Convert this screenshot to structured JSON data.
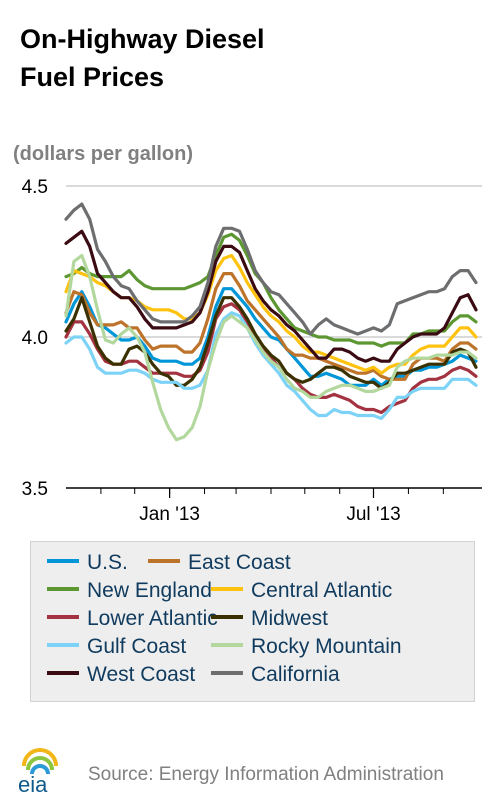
{
  "title_lines": [
    "On-Highway Diesel",
    "Fuel Prices"
  ],
  "unit_label": "(dollars per gallon)",
  "source": "Source: Energy Information Administration",
  "logo_text": "eia",
  "chart_data": {
    "type": "line",
    "title": "On-Highway Diesel Fuel Prices",
    "ylabel": "(dollars per gallon)",
    "ylim": [
      3.5,
      4.5
    ],
    "yticks": [
      "4.5",
      "4.0",
      "3.5"
    ],
    "xticks": [
      "Jan '13",
      "Jul '13"
    ],
    "grid": "horizontal",
    "legend_position": "bottom",
    "x": [
      "2012-10-01",
      "2012-10-08",
      "2012-10-15",
      "2012-10-22",
      "2012-10-29",
      "2012-11-05",
      "2012-11-12",
      "2012-11-19",
      "2012-11-26",
      "2012-12-03",
      "2012-12-10",
      "2012-12-17",
      "2012-12-24",
      "2012-12-31",
      "2013-01-07",
      "2013-01-14",
      "2013-01-21",
      "2013-01-28",
      "2013-02-04",
      "2013-02-11",
      "2013-02-18",
      "2013-02-25",
      "2013-03-04",
      "2013-03-11",
      "2013-03-18",
      "2013-03-25",
      "2013-04-01",
      "2013-04-08",
      "2013-04-15",
      "2013-04-22",
      "2013-04-29",
      "2013-05-06",
      "2013-05-13",
      "2013-05-20",
      "2013-05-27",
      "2013-06-03",
      "2013-06-10",
      "2013-06-17",
      "2013-06-24",
      "2013-07-01",
      "2013-07-08",
      "2013-07-15",
      "2013-07-22",
      "2013-07-29",
      "2013-08-05",
      "2013-08-12",
      "2013-08-19",
      "2013-08-26",
      "2013-09-02",
      "2013-09-09",
      "2013-09-16",
      "2013-09-23",
      "2013-09-30"
    ],
    "series": [
      {
        "name": "U.S.",
        "color": "#0096d7",
        "values": [
          4.05,
          4.11,
          4.15,
          4.1,
          4.04,
          4.03,
          4.01,
          3.99,
          3.99,
          4.0,
          3.97,
          3.93,
          3.92,
          3.92,
          3.92,
          3.91,
          3.91,
          3.93,
          4.0,
          4.1,
          4.16,
          4.16,
          4.13,
          4.1,
          4.06,
          4.03,
          4.0,
          3.99,
          3.96,
          3.93,
          3.9,
          3.87,
          3.87,
          3.88,
          3.87,
          3.86,
          3.84,
          3.84,
          3.84,
          3.86,
          3.84,
          3.86,
          3.87,
          3.87,
          3.89,
          3.89,
          3.9,
          3.9,
          3.91,
          3.92,
          3.94,
          3.93,
          3.92
        ]
      },
      {
        "name": "East Coast",
        "color": "#bd732a",
        "values": [
          4.08,
          4.15,
          4.14,
          4.08,
          4.04,
          4.04,
          4.04,
          4.05,
          4.03,
          4.03,
          3.99,
          3.96,
          3.97,
          3.97,
          3.97,
          3.95,
          3.95,
          3.98,
          4.06,
          4.16,
          4.21,
          4.21,
          4.17,
          4.12,
          4.09,
          4.06,
          4.03,
          4.0,
          3.96,
          3.94,
          3.94,
          3.93,
          3.93,
          3.92,
          3.91,
          3.9,
          3.89,
          3.88,
          3.88,
          3.89,
          3.87,
          3.86,
          3.86,
          3.86,
          3.91,
          3.93,
          3.93,
          3.93,
          3.92,
          3.96,
          3.98,
          3.98,
          3.96
        ]
      },
      {
        "name": "New England",
        "color": "#5d9732",
        "values": [
          4.2,
          4.21,
          4.23,
          4.21,
          4.2,
          4.2,
          4.2,
          4.2,
          4.22,
          4.19,
          4.17,
          4.16,
          4.16,
          4.16,
          4.16,
          4.16,
          4.17,
          4.18,
          4.2,
          4.27,
          4.33,
          4.34,
          4.32,
          4.27,
          4.21,
          4.18,
          4.13,
          4.09,
          4.06,
          4.03,
          4.02,
          4.01,
          4.0,
          4.0,
          3.99,
          3.99,
          3.99,
          3.98,
          3.98,
          3.98,
          3.97,
          3.98,
          3.98,
          3.98,
          4.01,
          4.01,
          4.02,
          4.02,
          4.02,
          4.05,
          4.07,
          4.07,
          4.05
        ]
      },
      {
        "name": "Central Atlantic",
        "color": "#ffc20e",
        "values": [
          4.15,
          4.22,
          4.21,
          4.2,
          4.18,
          4.17,
          4.15,
          4.13,
          4.13,
          4.12,
          4.1,
          4.09,
          4.09,
          4.09,
          4.08,
          4.06,
          4.06,
          4.08,
          4.14,
          4.22,
          4.26,
          4.27,
          4.23,
          4.18,
          4.14,
          4.1,
          4.07,
          4.05,
          4.02,
          4.0,
          3.97,
          3.95,
          3.95,
          3.94,
          3.93,
          3.92,
          3.91,
          3.9,
          3.89,
          3.9,
          3.88,
          3.9,
          3.91,
          3.91,
          3.94,
          3.96,
          3.97,
          3.97,
          3.97,
          4.0,
          4.03,
          4.03,
          4.0
        ]
      },
      {
        "name": "Lower Atlantic",
        "color": "#a33340",
        "values": [
          4.0,
          4.05,
          4.05,
          4.01,
          3.96,
          3.92,
          3.91,
          3.91,
          3.92,
          3.92,
          3.9,
          3.88,
          3.88,
          3.88,
          3.88,
          3.87,
          3.87,
          3.89,
          3.95,
          4.06,
          4.1,
          4.11,
          4.09,
          4.05,
          4.0,
          3.96,
          3.93,
          3.9,
          3.88,
          3.86,
          3.83,
          3.81,
          3.8,
          3.8,
          3.81,
          3.8,
          3.79,
          3.77,
          3.76,
          3.76,
          3.75,
          3.77,
          3.78,
          3.79,
          3.83,
          3.85,
          3.86,
          3.86,
          3.87,
          3.89,
          3.9,
          3.89,
          3.87
        ]
      },
      {
        "name": "Midwest",
        "color": "#3b3000",
        "values": [
          4.02,
          4.06,
          4.13,
          4.05,
          3.97,
          3.93,
          3.91,
          3.91,
          3.96,
          3.97,
          3.95,
          3.91,
          3.88,
          3.87,
          3.84,
          3.84,
          3.86,
          3.9,
          3.98,
          4.07,
          4.13,
          4.13,
          4.1,
          4.06,
          4.01,
          3.97,
          3.94,
          3.92,
          3.88,
          3.86,
          3.85,
          3.86,
          3.88,
          3.9,
          3.9,
          3.89,
          3.87,
          3.86,
          3.85,
          3.85,
          3.83,
          3.85,
          3.88,
          3.88,
          3.89,
          3.9,
          3.91,
          3.91,
          3.91,
          3.95,
          3.96,
          3.95,
          3.9
        ]
      },
      {
        "name": "Gulf Coast",
        "color": "#7dd3f7",
        "values": [
          3.98,
          4.0,
          4.0,
          3.96,
          3.9,
          3.88,
          3.88,
          3.88,
          3.89,
          3.89,
          3.88,
          3.86,
          3.85,
          3.85,
          3.85,
          3.83,
          3.83,
          3.84,
          3.89,
          4.01,
          4.06,
          4.08,
          4.07,
          4.03,
          3.98,
          3.94,
          3.91,
          3.88,
          3.84,
          3.82,
          3.79,
          3.76,
          3.74,
          3.74,
          3.76,
          3.75,
          3.75,
          3.74,
          3.74,
          3.74,
          3.73,
          3.76,
          3.8,
          3.8,
          3.82,
          3.83,
          3.83,
          3.83,
          3.83,
          3.86,
          3.86,
          3.86,
          3.84
        ]
      },
      {
        "name": "Rocky Mountain",
        "color": "#b3d89e",
        "values": [
          4.07,
          4.25,
          4.27,
          4.2,
          4.09,
          3.99,
          3.98,
          4.01,
          4.03,
          4.0,
          3.95,
          3.85,
          3.76,
          3.7,
          3.66,
          3.67,
          3.7,
          3.77,
          3.89,
          3.98,
          4.05,
          4.07,
          4.05,
          4.03,
          3.99,
          3.95,
          3.92,
          3.9,
          3.86,
          3.83,
          3.82,
          3.8,
          3.8,
          3.82,
          3.83,
          3.84,
          3.84,
          3.83,
          3.82,
          3.82,
          3.83,
          3.84,
          3.9,
          3.92,
          3.93,
          3.93,
          3.93,
          3.94,
          3.94,
          3.94,
          3.95,
          3.95,
          3.93
        ]
      },
      {
        "name": "West Coast",
        "color": "#3b0b13",
        "values": [
          4.31,
          4.33,
          4.35,
          4.3,
          4.21,
          4.18,
          4.15,
          4.13,
          4.13,
          4.1,
          4.06,
          4.03,
          4.03,
          4.03,
          4.03,
          4.04,
          4.05,
          4.08,
          4.15,
          4.25,
          4.3,
          4.3,
          4.28,
          4.22,
          4.16,
          4.12,
          4.09,
          4.07,
          4.04,
          4.02,
          3.99,
          3.96,
          3.93,
          3.93,
          3.96,
          3.96,
          3.95,
          3.93,
          3.92,
          3.93,
          3.92,
          3.92,
          3.96,
          3.98,
          4.0,
          4.01,
          4.01,
          4.01,
          4.03,
          4.08,
          4.13,
          4.14,
          4.09
        ]
      },
      {
        "name": "California",
        "color": "#6d6e70",
        "values": [
          4.39,
          4.42,
          4.44,
          4.39,
          4.29,
          4.25,
          4.2,
          4.17,
          4.16,
          4.12,
          4.09,
          4.06,
          4.05,
          4.05,
          4.05,
          4.05,
          4.07,
          4.1,
          4.18,
          4.3,
          4.36,
          4.36,
          4.35,
          4.29,
          4.22,
          4.18,
          4.15,
          4.14,
          4.11,
          4.08,
          4.05,
          4.01,
          4.04,
          4.06,
          4.04,
          4.03,
          4.02,
          4.01,
          4.02,
          4.03,
          4.02,
          4.04,
          4.11,
          4.12,
          4.13,
          4.14,
          4.15,
          4.15,
          4.16,
          4.2,
          4.22,
          4.22,
          4.18
        ]
      }
    ]
  }
}
